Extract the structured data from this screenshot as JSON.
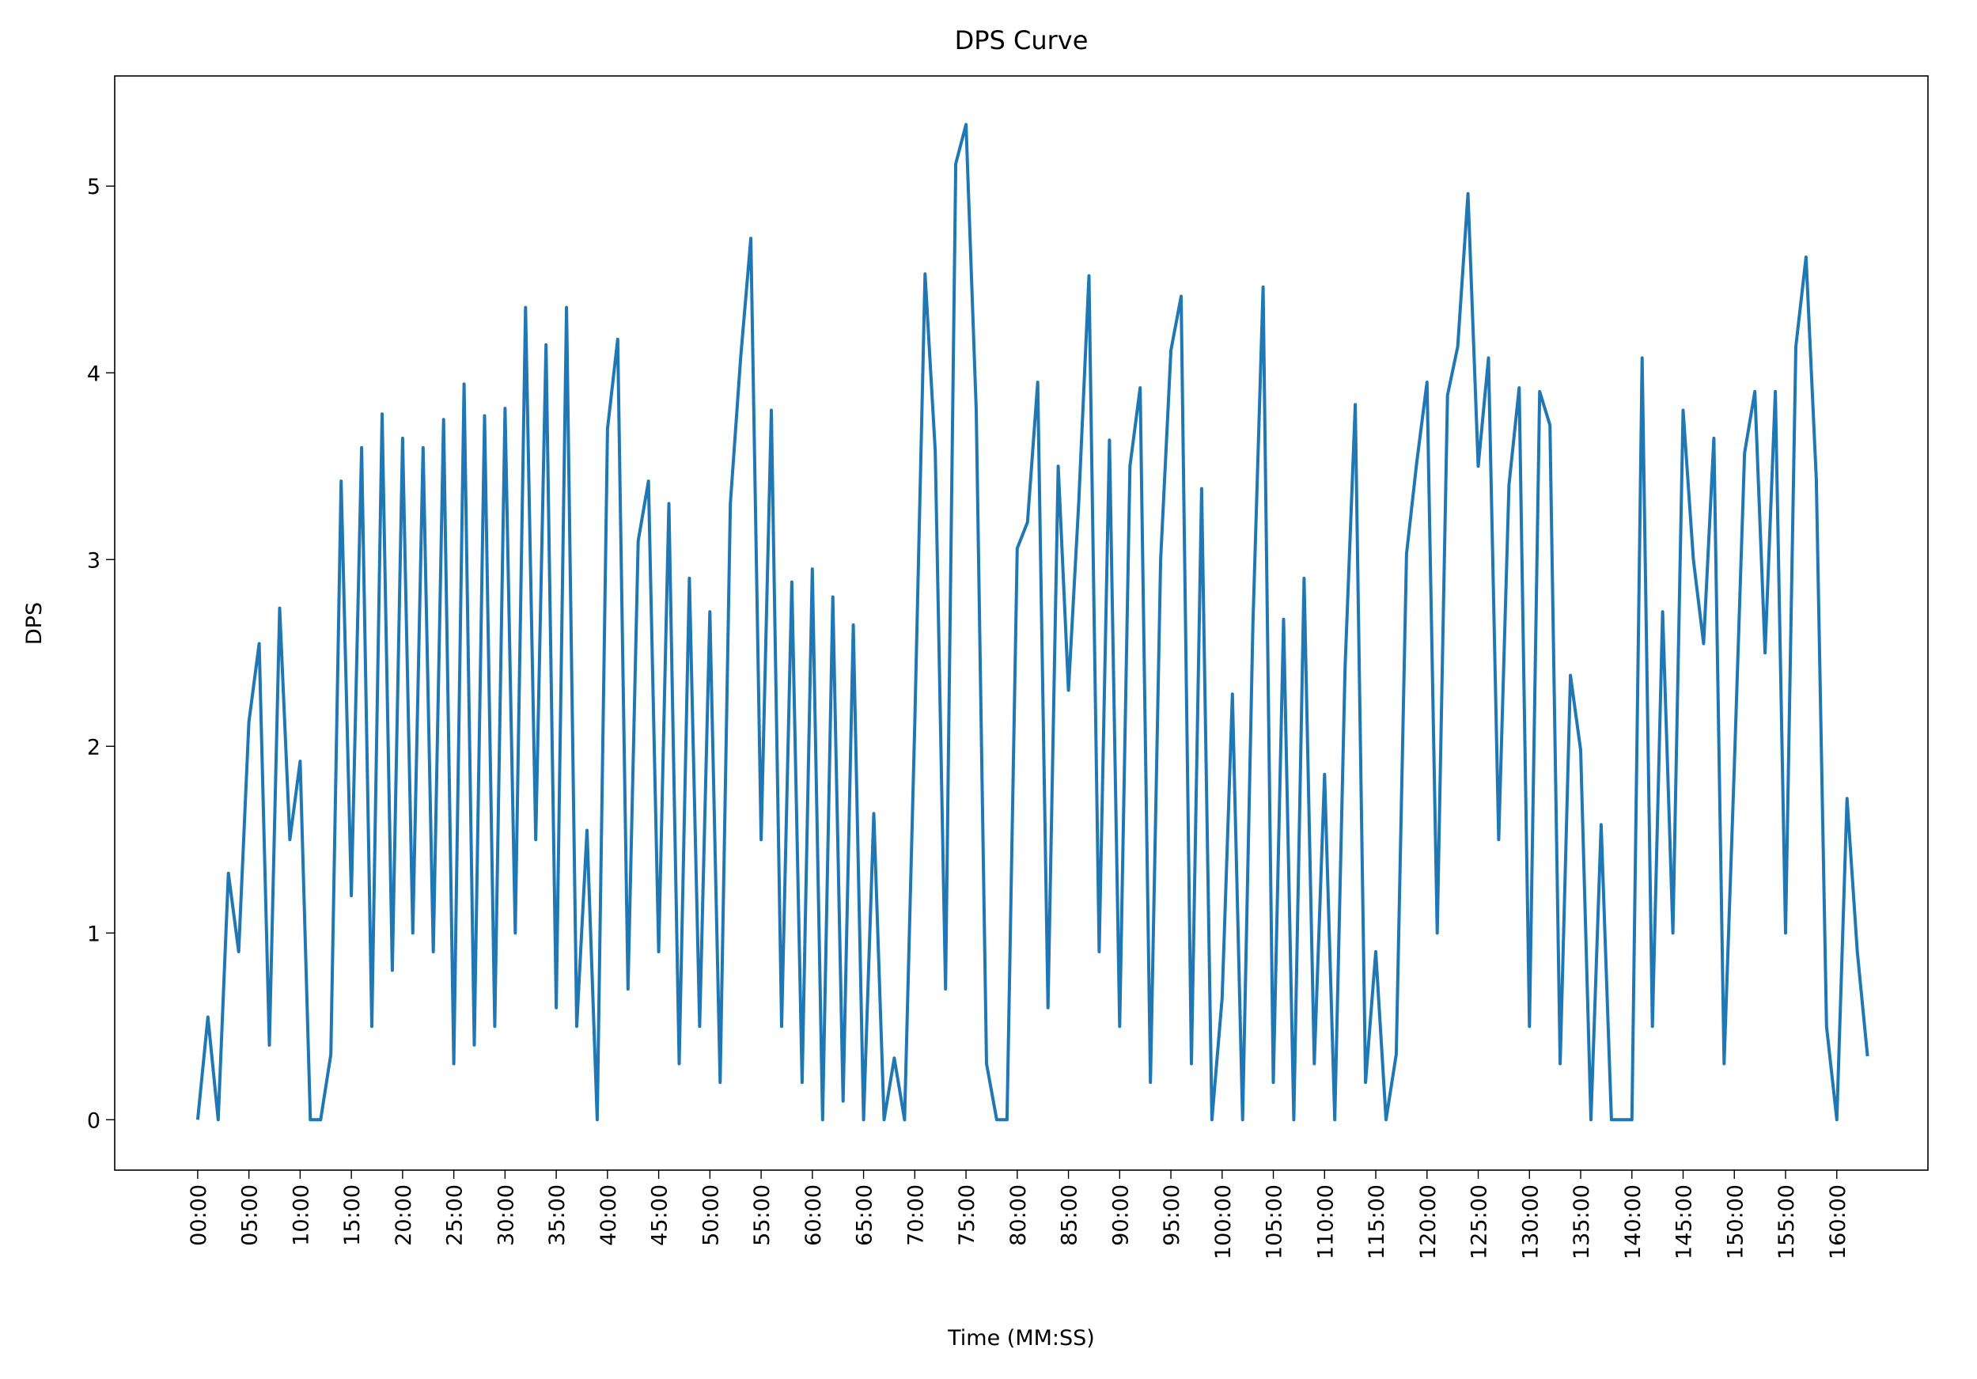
{
  "chart_data": {
    "type": "line",
    "title": "DPS Curve",
    "x_label": "Time (MM:SS)",
    "y_label": "DPS",
    "color": "#1f77b4",
    "x": [
      0,
      1,
      2,
      3,
      4,
      5,
      6,
      7,
      8,
      9,
      10,
      11,
      12,
      13,
      14,
      15,
      16,
      17,
      18,
      19,
      20,
      21,
      22,
      23,
      24,
      25,
      26,
      27,
      28,
      29,
      30,
      31,
      32,
      33,
      34,
      35,
      36,
      37,
      38,
      39,
      40,
      41,
      42,
      43,
      44,
      45,
      46,
      47,
      48,
      49,
      50,
      51,
      52,
      53,
      54,
      55,
      56,
      57,
      58,
      59,
      60,
      61,
      62,
      63,
      64,
      65,
      66,
      67,
      68,
      69,
      70,
      71,
      72,
      73,
      74,
      75,
      76,
      77,
      78,
      79,
      80,
      81,
      82,
      83,
      84,
      85,
      86,
      87,
      88,
      89,
      90,
      91,
      92,
      93,
      94,
      95,
      96,
      97,
      98,
      99,
      100,
      101,
      102,
      103,
      104,
      105,
      106,
      107,
      108,
      109,
      110,
      111,
      112,
      113,
      114,
      115,
      116,
      117,
      118,
      119,
      120,
      121,
      122,
      123,
      124,
      125,
      126,
      127,
      128,
      129,
      130,
      131,
      132,
      133,
      134,
      135,
      136,
      137,
      138,
      139,
      140,
      141,
      142,
      143,
      144,
      145,
      146,
      147,
      148,
      149,
      150,
      151,
      152,
      153,
      154,
      155,
      156,
      157,
      158,
      159,
      160,
      161,
      162,
      163
    ],
    "values": [
      0,
      0.55,
      0,
      1.32,
      0.9,
      2.13,
      2.55,
      0.4,
      2.74,
      1.5,
      1.92,
      0,
      0,
      0.35,
      3.42,
      1.2,
      3.6,
      0.5,
      3.78,
      0.8,
      3.65,
      1.0,
      3.6,
      0.9,
      3.75,
      0.3,
      3.94,
      0.4,
      3.77,
      0.5,
      3.81,
      1.0,
      4.35,
      1.5,
      4.15,
      0.6,
      4.35,
      0.5,
      1.55,
      0,
      3.7,
      4.18,
      0.7,
      3.1,
      3.42,
      0.9,
      3.3,
      0.3,
      2.9,
      0.5,
      2.72,
      0.2,
      3.3,
      4.08,
      4.72,
      1.5,
      3.8,
      0.5,
      2.88,
      0.2,
      2.95,
      0,
      2.8,
      0.1,
      2.65,
      0,
      1.64,
      0,
      0.33,
      0,
      2.12,
      4.53,
      3.58,
      0.7,
      5.12,
      5.33,
      3.8,
      0.3,
      0,
      0,
      3.06,
      3.2,
      3.95,
      0.6,
      3.5,
      2.3,
      3.3,
      4.52,
      0.9,
      3.64,
      0.5,
      3.5,
      3.92,
      0.2,
      3.0,
      4.12,
      4.41,
      0.3,
      3.38,
      0,
      0.65,
      2.28,
      0,
      2.65,
      4.46,
      0.2,
      2.68,
      0,
      2.9,
      0.3,
      1.85,
      0,
      2.42,
      3.83,
      0.2,
      0.9,
      0,
      0.35,
      3.03,
      3.52,
      3.95,
      1.0,
      3.88,
      4.14,
      4.96,
      3.5,
      4.08,
      1.5,
      3.4,
      3.92,
      0.5,
      3.9,
      3.72,
      0.3,
      2.38,
      1.98,
      0,
      1.58,
      0,
      0,
      0,
      4.08,
      0.5,
      2.72,
      1.0,
      3.8,
      3.0,
      2.55,
      3.65,
      0.3,
      1.9,
      3.57,
      3.9,
      2.5,
      3.9,
      1.0,
      4.14,
      4.62,
      3.43,
      0.5,
      0,
      1.72,
      0.9,
      0.34
    ],
    "xlim": [
      -8.1,
      168.9
    ],
    "ylim": [
      -0.27,
      5.59
    ],
    "yticks": [
      0,
      1,
      2,
      3,
      4,
      5
    ],
    "xticks": [
      {
        "value": 0,
        "label": "00:00"
      },
      {
        "value": 5,
        "label": "05:00"
      },
      {
        "value": 10,
        "label": "10:00"
      },
      {
        "value": 15,
        "label": "15:00"
      },
      {
        "value": 20,
        "label": "20:00"
      },
      {
        "value": 25,
        "label": "25:00"
      },
      {
        "value": 30,
        "label": "30:00"
      },
      {
        "value": 35,
        "label": "35:00"
      },
      {
        "value": 40,
        "label": "40:00"
      },
      {
        "value": 45,
        "label": "45:00"
      },
      {
        "value": 50,
        "label": "50:00"
      },
      {
        "value": 55,
        "label": "55:00"
      },
      {
        "value": 60,
        "label": "60:00"
      },
      {
        "value": 65,
        "label": "65:00"
      },
      {
        "value": 70,
        "label": "70:00"
      },
      {
        "value": 75,
        "label": "75:00"
      },
      {
        "value": 80,
        "label": "80:00"
      },
      {
        "value": 85,
        "label": "85:00"
      },
      {
        "value": 90,
        "label": "90:00"
      },
      {
        "value": 95,
        "label": "95:00"
      },
      {
        "value": 100,
        "label": "100:00"
      },
      {
        "value": 105,
        "label": "105:00"
      },
      {
        "value": 110,
        "label": "110:00"
      },
      {
        "value": 115,
        "label": "115:00"
      },
      {
        "value": 120,
        "label": "120:00"
      },
      {
        "value": 125,
        "label": "125:00"
      },
      {
        "value": 130,
        "label": "130:00"
      },
      {
        "value": 135,
        "label": "135:00"
      },
      {
        "value": 140,
        "label": "140:00"
      },
      {
        "value": 145,
        "label": "145:00"
      },
      {
        "value": 150,
        "label": "150:00"
      },
      {
        "value": 155,
        "label": "155:00"
      },
      {
        "value": 160,
        "label": "160:00"
      }
    ]
  }
}
